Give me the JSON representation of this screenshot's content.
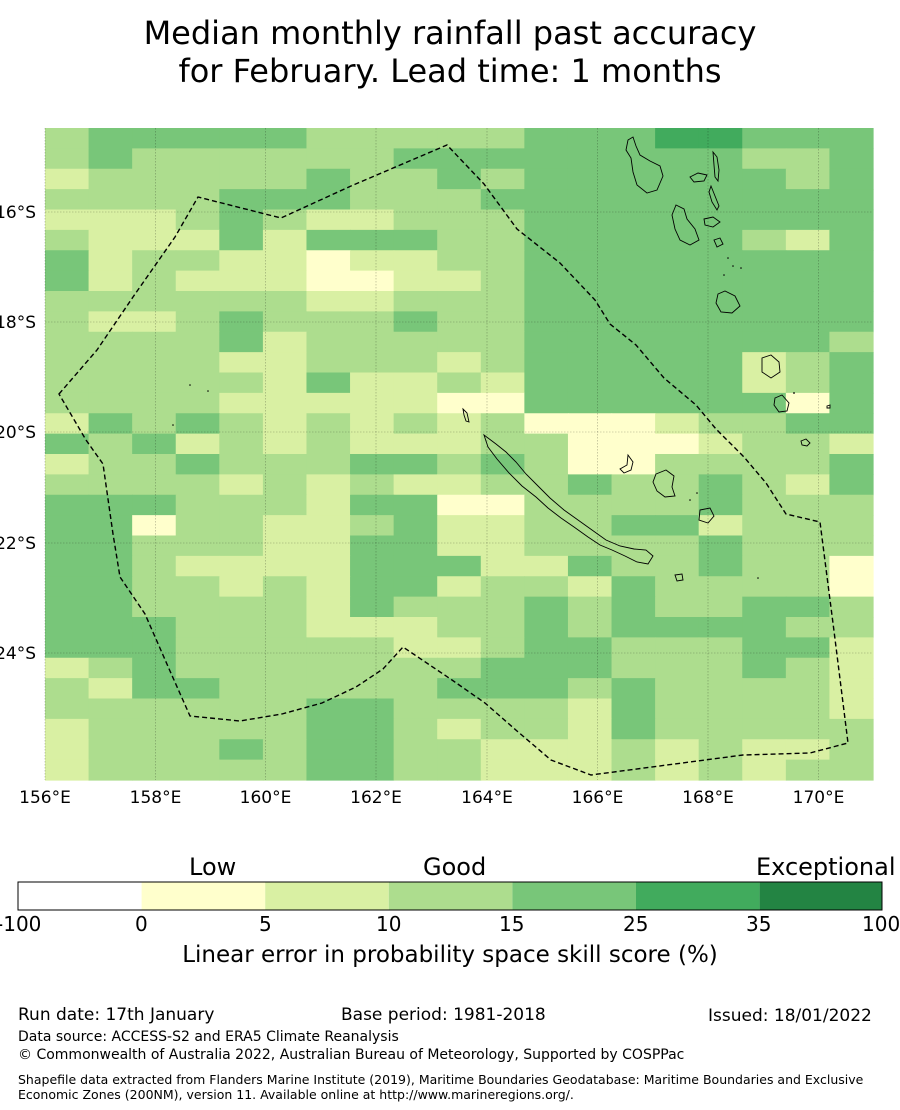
{
  "title": {
    "line1": "Median monthly rainfall past accuracy",
    "line2": "for February. Lead time: 1 months"
  },
  "map": {
    "lat_labels": [
      "16°S",
      "18°S",
      "20°S",
      "22°S",
      "24°S"
    ],
    "lon_labels": [
      "156°E",
      "158°E",
      "160°E",
      "162°E",
      "164°E",
      "166°E",
      "168°E",
      "170°E"
    ],
    "boundary_line": "dashed",
    "colors": {
      "c0": "#ffffff",
      "c1": "#ffffcc",
      "c2": "#d9f0a3",
      "c3": "#addd8e",
      "c4": "#78c679",
      "c5": "#41ab5d",
      "c6": "#238443"
    },
    "grid_classes": [
      "3444443333344455444",
      "3433333344444444334",
      "2333334334344444434",
      "3333444333444444444",
      "2223432233344444444",
      "3222424443344444324",
      "4233221223344444444",
      "4232221122344444444",
      "3333332233344444444",
      "3223433343344444444",
      "3333423333344444443",
      "3333223332344444234",
      "3333324223244444234",
      "3333222221144444414",
      "2434323232311123344",
      "4342323222331112332",
      "2334333443431133334",
      "3333232322334334324",
      "4443332441133334333",
      "4413322342233442333",
      "4433322442233334333",
      "4432222444224334331",
      "4433232442332433331",
      "4433332433343433443",
      "4443332223343444433",
      "4443333322344333442",
      "2343333333444333432",
      "3244333334443433332",
      "3333334433332433332",
      "2333334432332433333",
      "2333434433222323223",
      "2333334433222323233"
    ]
  },
  "colorbar": {
    "categories": [
      "Low",
      "Good",
      "Exceptional"
    ],
    "ticks": [
      "-100",
      "0",
      "5",
      "10",
      "15",
      "25",
      "35",
      "100"
    ],
    "axis_label": "Linear error in probability space skill score (%)"
  },
  "footer": {
    "run_date": "Run date: 17th January",
    "base_period": "Base period: 1981-2018",
    "issued": "Issued: 18/01/2022",
    "data_source": "Data source: ACCESS-S2 and ERA5 Climate Reanalysis",
    "copyright": "© Commonwealth of Australia 2022, Australian Bureau of Meteorology, Supported by COSPPac",
    "shapefile": "Shapefile data extracted from Flanders Marine Institute (2019), Maritime Boundaries Geodatabase: Maritime Boundaries and Exclusive Economic Zones (200NM), version 11. Available online at http://www.marineregions.org/."
  }
}
